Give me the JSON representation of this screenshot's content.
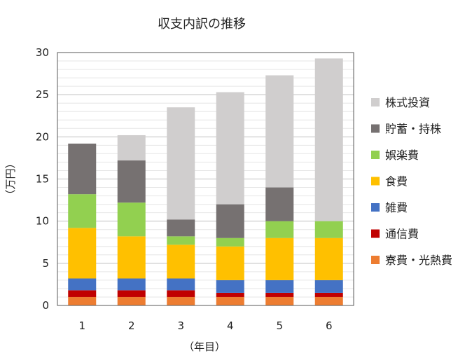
{
  "chart_data": {
    "type": "bar",
    "stacked": true,
    "title": "収支内訳の推移",
    "xlabel": "（年目）",
    "ylabel": "（万円）",
    "ylim": [
      0,
      30
    ],
    "y_ticks": [
      0,
      5,
      10,
      15,
      20,
      25,
      30
    ],
    "grid": true,
    "legend_position": "right",
    "categories": [
      "1",
      "2",
      "3",
      "4",
      "5",
      "6"
    ],
    "series": [
      {
        "name": "寮費・光熱費",
        "color": "#ED7D31",
        "values": [
          1.0,
          1.0,
          1.0,
          1.0,
          1.0,
          1.0
        ]
      },
      {
        "name": "通信費",
        "color": "#C00000",
        "values": [
          0.8,
          0.8,
          0.8,
          0.5,
          0.5,
          0.5
        ]
      },
      {
        "name": "雑費",
        "color": "#4472C4",
        "values": [
          1.4,
          1.4,
          1.4,
          1.5,
          1.5,
          1.5
        ]
      },
      {
        "name": "食費",
        "color": "#FFC000",
        "values": [
          6.0,
          5.0,
          4.0,
          4.0,
          5.0,
          5.0
        ]
      },
      {
        "name": "娯楽費",
        "color": "#92D050",
        "values": [
          4.0,
          4.0,
          1.0,
          1.0,
          2.0,
          2.0
        ]
      },
      {
        "name": "貯蓄・持株",
        "color": "#767171",
        "values": [
          6.0,
          5.0,
          2.0,
          4.0,
          4.0,
          0.0
        ]
      },
      {
        "name": "株式投資",
        "color": "#D0CECE",
        "values": [
          0.0,
          3.0,
          13.3,
          13.3,
          13.3,
          19.3
        ]
      }
    ]
  }
}
